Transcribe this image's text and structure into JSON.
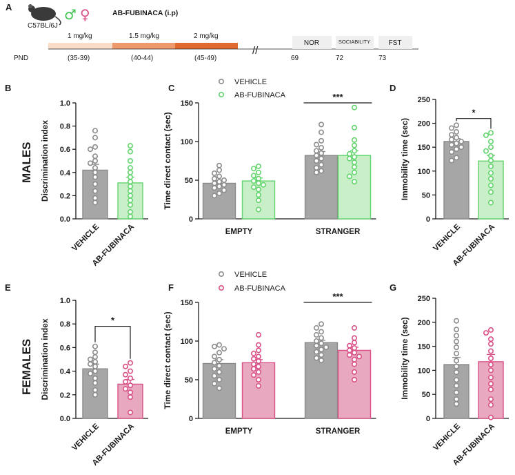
{
  "colors": {
    "vehicle": "#a6a6a6",
    "vehicle_dot": "#8c8c8c",
    "ab_males": "#c8efc8",
    "ab_males_dot": "#63d46e",
    "ab_females": "#e8a9c0",
    "ab_females_dot": "#d94f86",
    "timeline_light": "#f9ddc8",
    "timeline_mid": "#ef9a6c",
    "timeline_dark": "#e2692e",
    "test_box": "#efefef"
  },
  "panel_a": {
    "letter": "A",
    "strain": "C57BL/6J",
    "sex_symbols": [
      "♂",
      "♀"
    ],
    "title": "AB-FUBINACA (i.p)",
    "doses": [
      {
        "label": "1 mg/kg",
        "pnd": "(35-39)"
      },
      {
        "label": "1.5 mg/kg",
        "pnd": "(40-44)"
      },
      {
        "label": "2 mg/kg",
        "pnd": "(45-49)"
      }
    ],
    "axis_label": "PND",
    "break_mark": "//",
    "tests": [
      {
        "label": "NOR",
        "pnd": "69"
      },
      {
        "label": "SOCIABILITY",
        "pnd": "72"
      },
      {
        "label": "FST",
        "pnd": "73"
      }
    ]
  },
  "row_labels": {
    "males": "MALES",
    "females": "FEMALES"
  },
  "legend": {
    "vehicle": "VEHICLE",
    "ab": "AB-FUBINACA"
  },
  "chart_data": [
    {
      "panel": "B",
      "type": "bar",
      "sex": "males",
      "ylabel": "Discrimination index",
      "ylim": [
        0,
        1.0
      ],
      "yticks": [
        0.0,
        0.2,
        0.4,
        0.6,
        0.8,
        1.0
      ],
      "categories": [
        "VEHICLE",
        "AB-FUBINACA"
      ],
      "values": [
        0.42,
        0.31
      ],
      "sem": [
        0.05,
        0.05
      ],
      "points": [
        [
          0.76,
          0.7,
          0.62,
          0.6,
          0.54,
          0.5,
          0.48,
          0.44,
          0.4,
          0.36,
          0.3,
          0.24,
          0.18,
          0.14
        ],
        [
          0.63,
          0.58,
          0.5,
          0.44,
          0.4,
          0.36,
          0.32,
          0.28,
          0.24,
          0.2,
          0.16,
          0.12,
          0.06,
          0.02
        ]
      ],
      "significance": null
    },
    {
      "panel": "C",
      "type": "bar",
      "sex": "males",
      "ylabel": "Time direct contact (sec)",
      "ylim": [
        0,
        150
      ],
      "yticks": [
        0,
        50,
        100,
        150
      ],
      "categories": [
        "EMPTY",
        "STRANGER"
      ],
      "series": [
        {
          "name": "VEHICLE",
          "values": [
            46,
            82
          ],
          "sem": [
            3,
            5
          ],
          "points": [
            [
              69,
              63,
              59,
              55,
              52,
              50,
              48,
              46,
              44,
              42,
              40,
              37,
              33,
              30
            ],
            [
              122,
              112,
              101,
              96,
              92,
              88,
              85,
              82,
              78,
              75,
              70,
              66,
              62,
              60
            ]
          ]
        },
        {
          "name": "AB-FUBINACA",
          "values": [
            49,
            82
          ],
          "sem": [
            4,
            6
          ],
          "points": [
            [
              68,
              65,
              60,
              56,
              52,
              49,
              46,
              44,
              41,
              38,
              31,
              24,
              12
            ],
            [
              144,
              118,
              102,
              95,
              88,
              84,
              80,
              78,
              73,
              67,
              60,
              55,
              48
            ]
          ]
        }
      ],
      "significance": {
        "label": "***",
        "between": "STRANGER"
      }
    },
    {
      "panel": "D",
      "type": "bar",
      "sex": "males",
      "ylabel": "Immobility time (sec)",
      "ylim": [
        0,
        250
      ],
      "yticks": [
        0,
        50,
        100,
        150,
        200,
        250
      ],
      "categories": [
        "VEHICLE",
        "AB-FUBINACA"
      ],
      "values": [
        162,
        121
      ],
      "sem": [
        6,
        12
      ],
      "points": [
        [
          196,
          190,
          182,
          176,
          170,
          166,
          162,
          158,
          155,
          150,
          146,
          140,
          128,
          122
        ],
        [
          180,
          175,
          162,
          150,
          142,
          132,
          122,
          110,
          96,
          84,
          70,
          56,
          34
        ]
      ],
      "significance": {
        "label": "*",
        "between": "VEHICLE vs AB-FUBINACA"
      }
    },
    {
      "panel": "E",
      "type": "bar",
      "sex": "females",
      "ylabel": "Discrimination index",
      "ylim": [
        0,
        1.0
      ],
      "yticks": [
        0.0,
        0.2,
        0.4,
        0.6,
        0.8,
        1.0
      ],
      "categories": [
        "VEHICLE",
        "AB-FUBINACA"
      ],
      "values": [
        0.42,
        0.29
      ],
      "sem": [
        0.04,
        0.04
      ],
      "points": [
        [
          0.61,
          0.56,
          0.52,
          0.5,
          0.48,
          0.46,
          0.44,
          0.4,
          0.38,
          0.34,
          0.3,
          0.24,
          0.2
        ],
        [
          0.47,
          0.44,
          0.4,
          0.37,
          0.34,
          0.31,
          0.28,
          0.25,
          0.22,
          0.18,
          0.05
        ]
      ],
      "significance": {
        "label": "*",
        "between": "VEHICLE vs AB-FUBINACA"
      }
    },
    {
      "panel": "F",
      "type": "bar",
      "sex": "females",
      "ylabel": "Time direct contact (sec)",
      "ylim": [
        0,
        150
      ],
      "yticks": [
        0,
        50,
        100,
        150
      ],
      "categories": [
        "EMPTY",
        "STRANGER"
      ],
      "series": [
        {
          "name": "VEHICLE",
          "values": [
            71,
            98
          ],
          "sem": [
            5,
            3
          ],
          "points": [
            [
              95,
              93,
              90,
              85,
              80,
              76,
              72,
              68,
              64,
              60,
              55,
              50,
              45,
              39
            ],
            [
              122,
              117,
              112,
              108,
              104,
              100,
              97,
              94,
              92,
              89,
              86,
              82,
              78,
              75
            ]
          ]
        },
        {
          "name": "AB-FUBINACA",
          "values": [
            72,
            88
          ],
          "sem": [
            4,
            4
          ],
          "points": [
            [
              108,
              95,
              88,
              84,
              80,
              77,
              74,
              70,
              67,
              64,
              60,
              56,
              50,
              42
            ],
            [
              117,
              104,
              98,
              94,
              91,
              88,
              85,
              82,
              80,
              76,
              70,
              60,
              50
            ]
          ]
        }
      ],
      "significance": {
        "label": "***",
        "between": "STRANGER"
      }
    },
    {
      "panel": "G",
      "type": "bar",
      "sex": "females",
      "ylabel": "Immobility time (sec)",
      "ylim": [
        0,
        250
      ],
      "yticks": [
        0,
        50,
        100,
        150,
        200,
        250
      ],
      "categories": [
        "VEHICLE",
        "AB-FUBINACA"
      ],
      "values": [
        112,
        118
      ],
      "sem": [
        15,
        15
      ],
      "points": [
        [
          203,
          185,
          172,
          160,
          148,
          135,
          120,
          108,
          96,
          80,
          68,
          54,
          40,
          30
        ],
        [
          184,
          178,
          165,
          155,
          140,
          125,
          112,
          100,
          85,
          72,
          60,
          40,
          28,
          2
        ]
      ],
      "significance": null
    }
  ]
}
